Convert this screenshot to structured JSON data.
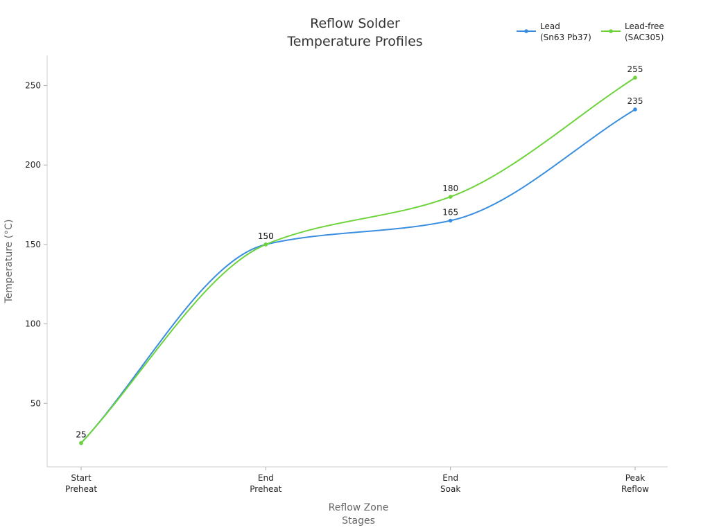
{
  "chart_data": {
    "type": "line",
    "title": "Reflow Solder\nTemperature Profiles",
    "x_label": "Reflow Zone\nStages",
    "y_label": "Temperature (°C)",
    "categories": [
      "Start\nPreheat",
      "End\nPreheat",
      "End\nSoak",
      "Peak\nReflow"
    ],
    "series": [
      {
        "name": "Lead\n(Sn63 Pb37)",
        "color": "#3a8ee0",
        "values": [
          25,
          150,
          165,
          235
        ]
      },
      {
        "name": "Lead-free\n(SAC305)",
        "color": "#6cd33a",
        "values": [
          25,
          150,
          180,
          255
        ]
      }
    ],
    "ylim": [
      10,
      269
    ],
    "yticks": [
      50,
      100,
      150,
      200,
      250
    ],
    "grid": false,
    "smooth": true,
    "legend": "top-right"
  }
}
